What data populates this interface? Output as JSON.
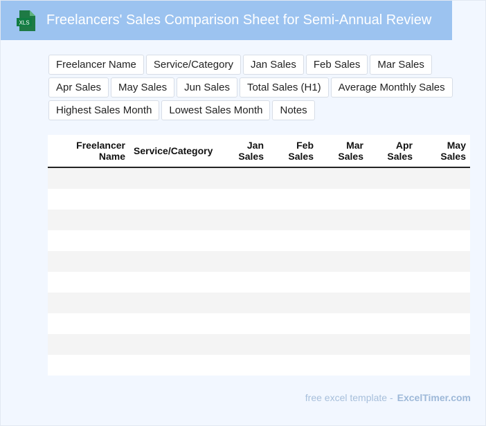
{
  "header": {
    "title": "Freelancers' Sales Comparison Sheet for Semi-Annual Review",
    "icon": "xls-file-icon",
    "icon_label": "XLS",
    "color": "#9cc3f0"
  },
  "columns": [
    "Freelancer Name",
    "Service/Category",
    "Jan Sales",
    "Feb Sales",
    "Mar Sales",
    "Apr Sales",
    "May Sales",
    "Jun Sales",
    "Total Sales (H1)",
    "Average Monthly Sales",
    "Highest Sales Month",
    "Lowest Sales Month",
    "Notes"
  ],
  "table": {
    "headers": [
      {
        "line1": "Freelancer",
        "line2": "Name"
      },
      {
        "line1": "Service/Category",
        "line2": ""
      },
      {
        "line1": "Jan",
        "line2": "Sales"
      },
      {
        "line1": "Feb",
        "line2": "Sales"
      },
      {
        "line1": "Mar",
        "line2": "Sales"
      },
      {
        "line1": "Apr",
        "line2": "Sales"
      },
      {
        "line1": "May",
        "line2": "Sales"
      }
    ],
    "rows": [
      [
        "",
        "",
        "",
        "",
        "",
        "",
        ""
      ],
      [
        "",
        "",
        "",
        "",
        "",
        "",
        ""
      ],
      [
        "",
        "",
        "",
        "",
        "",
        "",
        ""
      ],
      [
        "",
        "",
        "",
        "",
        "",
        "",
        ""
      ],
      [
        "",
        "",
        "",
        "",
        "",
        "",
        ""
      ],
      [
        "",
        "",
        "",
        "",
        "",
        "",
        ""
      ],
      [
        "",
        "",
        "",
        "",
        "",
        "",
        ""
      ],
      [
        "",
        "",
        "",
        "",
        "",
        "",
        ""
      ],
      [
        "",
        "",
        "",
        "",
        "",
        "",
        ""
      ],
      [
        "",
        "",
        "",
        "",
        "",
        "",
        ""
      ]
    ]
  },
  "footer": {
    "text": "free excel template -",
    "brand": "ExcelTimer.com"
  }
}
